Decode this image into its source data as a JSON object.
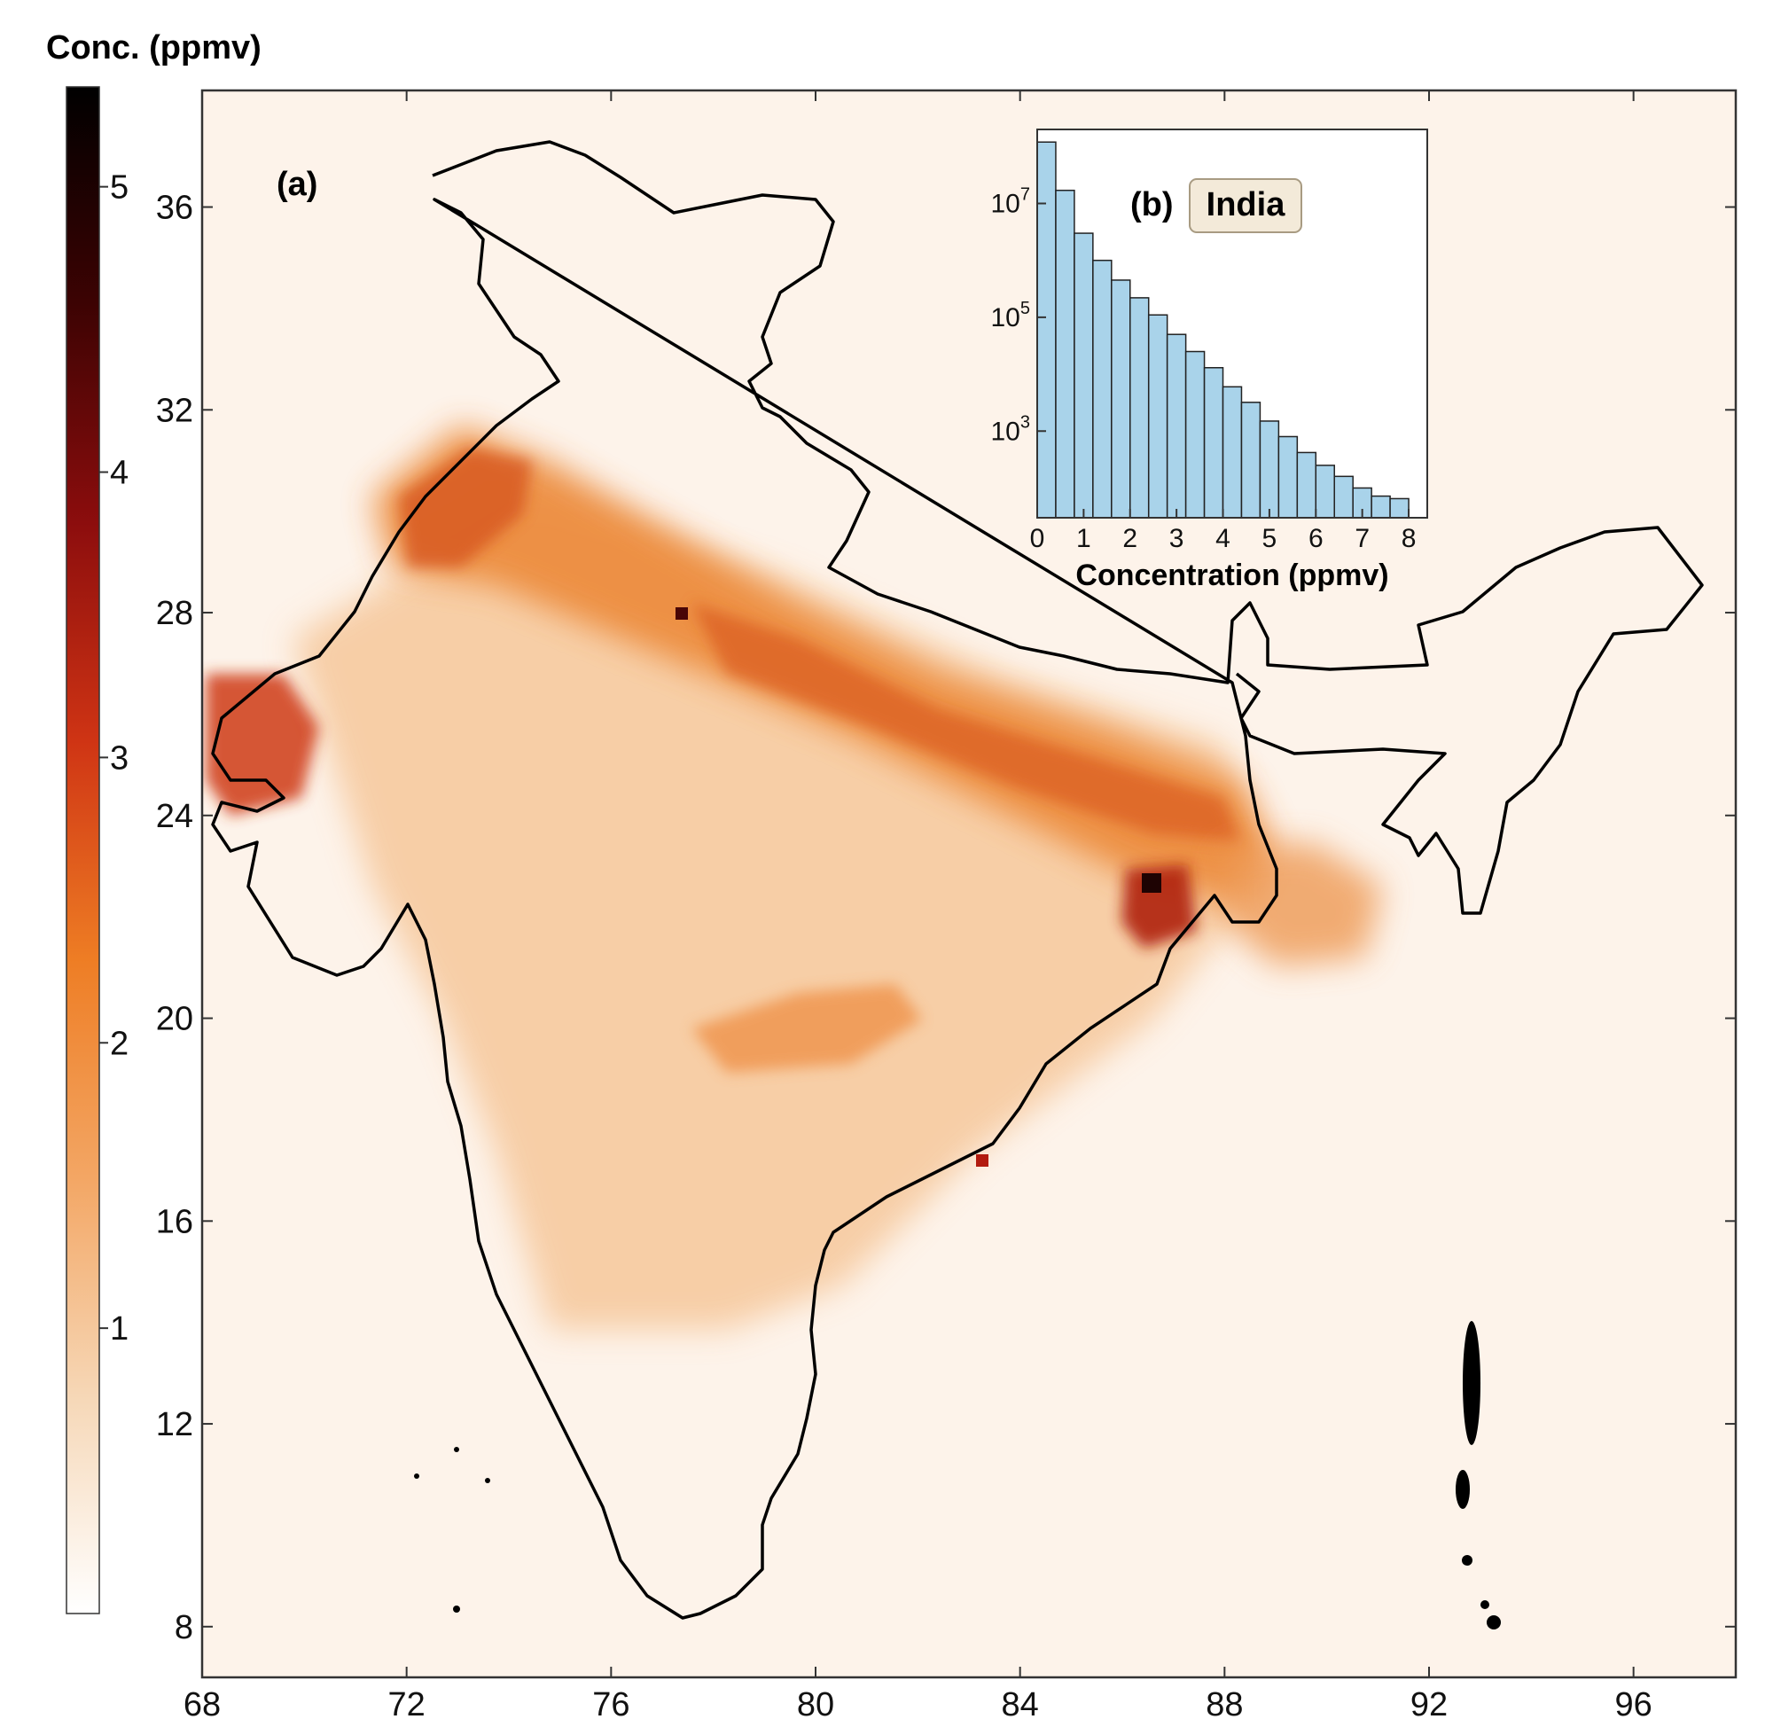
{
  "colorbar": {
    "title": "Conc. (ppmv)",
    "ticks": [
      "1",
      "2",
      "3",
      "4",
      "5"
    ],
    "range": [
      0,
      5.35
    ],
    "colors": [
      "#ffffff",
      "#f6d7b6",
      "#f3a664",
      "#ee7d24",
      "#cf3414",
      "#8c0d0d",
      "#3d0303",
      "#000000"
    ]
  },
  "map": {
    "panel_label": "(a)",
    "x_ticks": [
      "68",
      "72",
      "76",
      "80",
      "84",
      "88",
      "92",
      "96"
    ],
    "y_ticks": [
      "8",
      "12",
      "16",
      "20",
      "24",
      "28",
      "32",
      "36"
    ],
    "lon_range": [
      68,
      98
    ],
    "lat_range": [
      7,
      38.3
    ],
    "outline_color": "#000000"
  },
  "chart_data": {
    "type": "bar",
    "title": "(b)",
    "region_label": "India",
    "xlabel": "Concentration (ppmv)",
    "ylabel": "",
    "yscale": "log",
    "x_ticks": [
      "0",
      "1",
      "2",
      "3",
      "4",
      "5",
      "6",
      "7",
      "8"
    ],
    "y_ticks": [
      "10^3",
      "10^5",
      "10^7"
    ],
    "xlim": [
      0,
      8.4
    ],
    "ylim": [
      30,
      200000000
    ],
    "bin_width": 0.4,
    "bin_starts": [
      0,
      0.4,
      0.8,
      1.2,
      1.6,
      2.0,
      2.4,
      2.8,
      3.2,
      3.6,
      4.0,
      4.4,
      4.8,
      5.2,
      5.6,
      6.0,
      6.4,
      6.8,
      7.2,
      7.6,
      8.0
    ],
    "values": [
      120000000,
      17000000,
      3000000,
      1000000,
      450000,
      220000,
      110000,
      50000,
      25000,
      13000,
      6000,
      3200,
      1500,
      800,
      420,
      250,
      160,
      100,
      72,
      65,
      0
    ],
    "bar_color": "#a9d3ea"
  }
}
